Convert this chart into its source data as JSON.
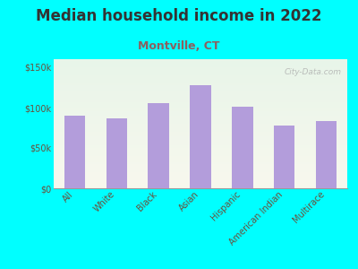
{
  "title": "Median household income in 2022",
  "subtitle": "Montville, CT",
  "categories": [
    "All",
    "White",
    "Black",
    "Asian",
    "Hispanic",
    "American Indian",
    "Multirace"
  ],
  "values": [
    90000,
    87000,
    105000,
    128000,
    101000,
    78000,
    83000
  ],
  "bar_color": "#b39ddb",
  "background_outer": "#00ffff",
  "title_color": "#333333",
  "subtitle_color": "#8B6060",
  "tick_color": "#6b4f3a",
  "ytick_labels": [
    "$0",
    "$50k",
    "$100k",
    "$150k"
  ],
  "yticks": [
    0,
    50000,
    100000,
    150000
  ],
  "ylim": [
    0,
    160000
  ],
  "watermark": "City-Data.com",
  "title_fontsize": 12,
  "subtitle_fontsize": 9,
  "tick_fontsize": 7
}
